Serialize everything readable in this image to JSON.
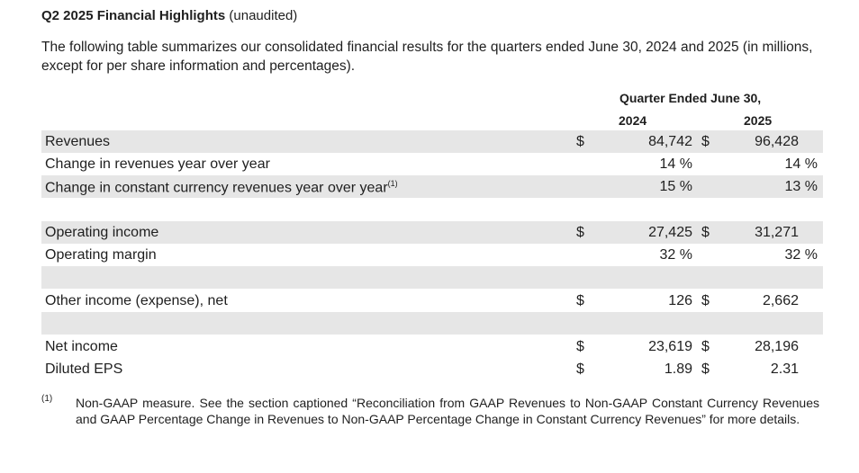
{
  "heading": {
    "bold": "Q2 2025 Financial Highlights",
    "rest": " (unaudited)"
  },
  "intro": "The following table summarizes our consolidated financial results for the quarters ended June 30, 2024 and 2025 (in millions, except for per share information and percentages).",
  "table": {
    "period_header": "Quarter Ended June 30,",
    "col_years": [
      "2024",
      "2025"
    ],
    "rows": [
      {
        "label": "Revenues",
        "d1": "$",
        "v1": "84,742",
        "d2": "$",
        "v2": "96,428"
      },
      {
        "label": "Change in revenues year over year",
        "v1": "14 %",
        "v2": "14 %"
      },
      {
        "label": "Change in constant currency revenues year over year",
        "sup": "(1)",
        "v1": "15 %",
        "v2": "13 %"
      },
      {
        "label": "Operating income",
        "d1": "$",
        "v1": "27,425",
        "d2": "$",
        "v2": "31,271"
      },
      {
        "label": "Operating margin",
        "v1": "32 %",
        "v2": "32 %"
      },
      {
        "label": "Other income (expense), net",
        "d1": "$",
        "v1": "126",
        "d2": "$",
        "v2": "2,662"
      },
      {
        "label": "Net income",
        "d1": "$",
        "v1": "23,619",
        "d2": "$",
        "v2": "28,196"
      },
      {
        "label": "Diluted EPS",
        "d1": "$",
        "v1": "1.89",
        "d2": "$",
        "v2": "2.31"
      }
    ]
  },
  "footnote": {
    "mark": "(1)",
    "text": "Non-GAAP measure. See the section captioned “Reconciliation from GAAP Revenues to Non-GAAP Constant Currency Revenues and GAAP Percentage Change in Revenues to Non-GAAP Percentage Change in Constant Currency Revenues” for more details."
  }
}
